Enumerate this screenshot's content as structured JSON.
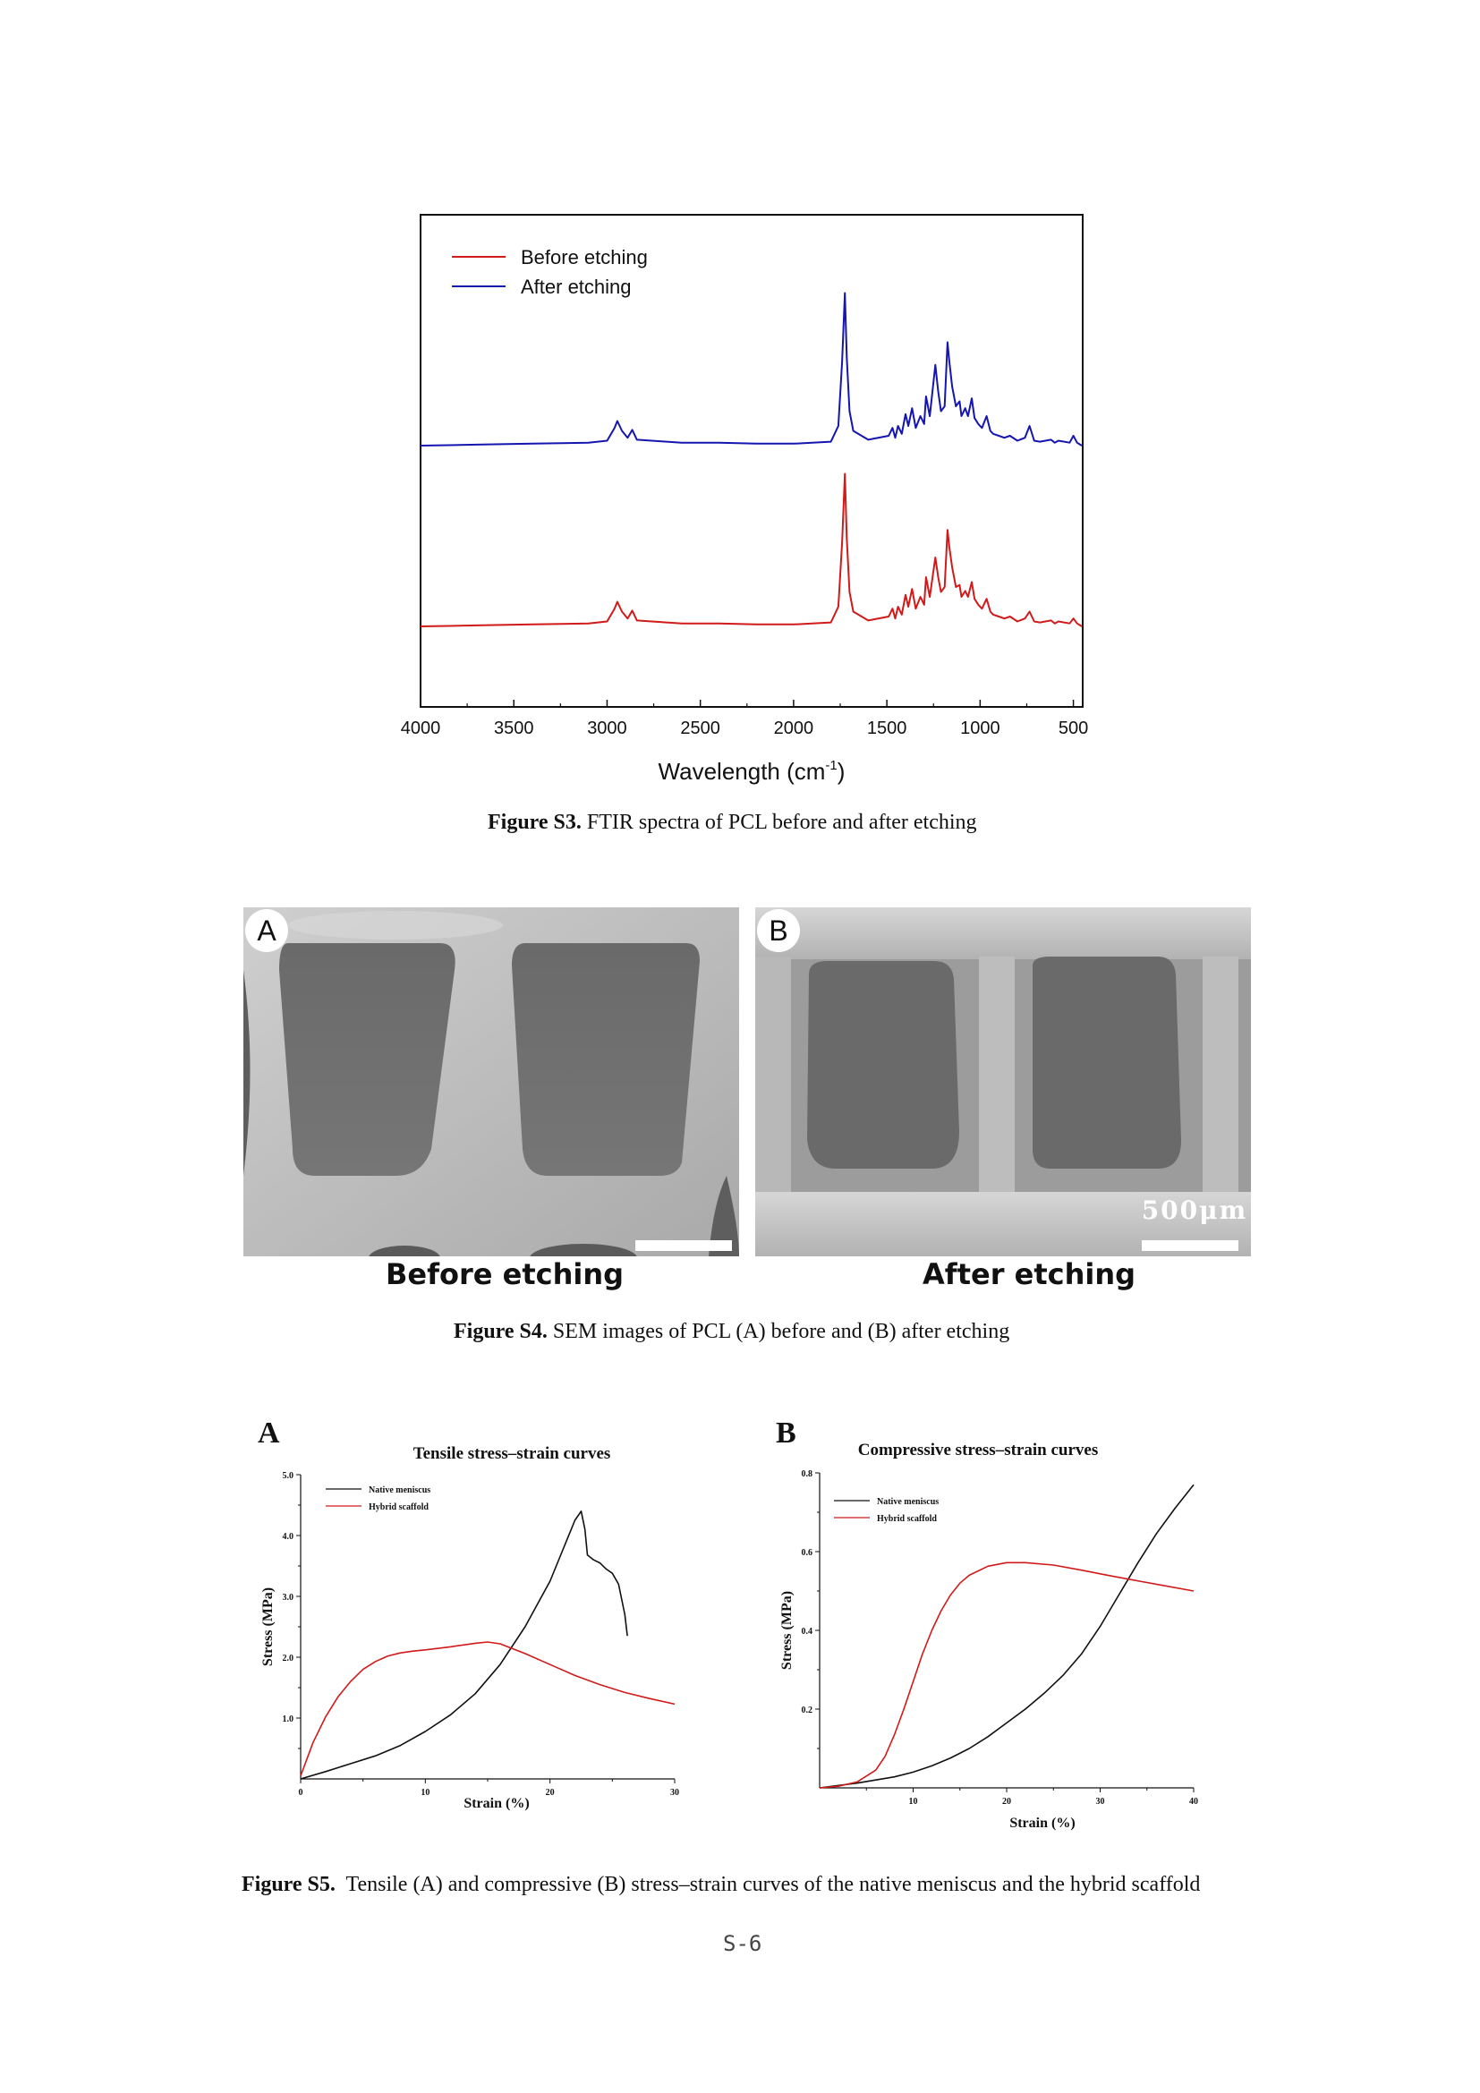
{
  "figure_s3": {
    "caption_label": "Figure S3.",
    "caption_text": " FTIR spectra of PCL before and after etching"
  },
  "figure_s4": {
    "panel_a_letter": "A",
    "panel_b_letter": "B",
    "panel_a_sub": "Before etching",
    "panel_b_sub": "After etching",
    "scale_text": "500μm",
    "caption_label": "Figure S4.",
    "caption_text": " SEM images of PCL (A) before and (B) after etching"
  },
  "figure_s5": {
    "panel_a_letter": "A",
    "panel_b_letter": "B",
    "caption_label": "Figure S5.",
    "caption_text": "  Tensile (A) and compressive (B) stress–strain curves of the native meniscus and the hybrid scaffold"
  },
  "page_number": "S-6",
  "colors": {
    "red": "#d11a1a",
    "blue": "#1515b0",
    "black": "#111111"
  },
  "chart_data": [
    {
      "id": "ftir",
      "type": "line",
      "title": "",
      "xlabel": "Wavelength (cm",
      "xlabel_sup": "-1",
      "xlabel_close": ")",
      "ylabel": "",
      "xlim": [
        4000,
        450
      ],
      "x_reversed": true,
      "xticks": [
        4000,
        3500,
        3000,
        2500,
        2000,
        1500,
        1000,
        500
      ],
      "legend_position": "top-left",
      "series": [
        {
          "name": "Before etching",
          "color": "#d11a1a",
          "baseline": 0,
          "x": [
            4000,
            3700,
            3400,
            3100,
            3000,
            2960,
            2945,
            2920,
            2890,
            2865,
            2840,
            2600,
            2400,
            2200,
            2000,
            1800,
            1760,
            1740,
            1725,
            1715,
            1700,
            1680,
            1600,
            1490,
            1470,
            1455,
            1440,
            1420,
            1400,
            1385,
            1365,
            1345,
            1320,
            1300,
            1290,
            1270,
            1240,
            1225,
            1210,
            1190,
            1175,
            1165,
            1150,
            1130,
            1110,
            1100,
            1080,
            1065,
            1045,
            1030,
            1010,
            990,
            965,
            945,
            930,
            900,
            870,
            840,
            800,
            760,
            735,
            710,
            680,
            620,
            600,
            580,
            520,
            500,
            480,
            455
          ],
          "y": [
            0.0,
            0.01,
            0.02,
            0.03,
            0.05,
            0.18,
            0.25,
            0.15,
            0.08,
            0.16,
            0.06,
            0.03,
            0.03,
            0.02,
            0.02,
            0.04,
            0.2,
            0.85,
            1.55,
            0.9,
            0.35,
            0.15,
            0.06,
            0.1,
            0.18,
            0.08,
            0.2,
            0.12,
            0.32,
            0.2,
            0.38,
            0.18,
            0.3,
            0.22,
            0.5,
            0.3,
            0.7,
            0.5,
            0.35,
            0.4,
            0.98,
            0.8,
            0.6,
            0.4,
            0.42,
            0.3,
            0.36,
            0.3,
            0.45,
            0.28,
            0.22,
            0.18,
            0.28,
            0.15,
            0.12,
            0.1,
            0.08,
            0.1,
            0.05,
            0.08,
            0.15,
            0.05,
            0.04,
            0.06,
            0.03,
            0.05,
            0.03,
            0.08,
            0.03,
            0.0
          ]
        },
        {
          "name": "After etching",
          "color": "#1515b0",
          "baseline": 1,
          "x": [
            4000,
            3700,
            3400,
            3100,
            3000,
            2960,
            2945,
            2920,
            2890,
            2865,
            2840,
            2600,
            2400,
            2200,
            2000,
            1800,
            1760,
            1740,
            1725,
            1715,
            1700,
            1680,
            1600,
            1490,
            1470,
            1455,
            1440,
            1420,
            1400,
            1385,
            1365,
            1345,
            1320,
            1300,
            1290,
            1270,
            1240,
            1225,
            1210,
            1190,
            1175,
            1165,
            1150,
            1130,
            1110,
            1100,
            1080,
            1065,
            1045,
            1030,
            1010,
            990,
            965,
            945,
            930,
            900,
            870,
            840,
            800,
            760,
            735,
            710,
            680,
            620,
            600,
            580,
            520,
            500,
            480,
            455
          ],
          "y": [
            0.0,
            0.01,
            0.02,
            0.03,
            0.05,
            0.18,
            0.25,
            0.15,
            0.08,
            0.16,
            0.06,
            0.03,
            0.03,
            0.02,
            0.02,
            0.04,
            0.2,
            0.85,
            1.55,
            0.9,
            0.35,
            0.15,
            0.06,
            0.1,
            0.18,
            0.08,
            0.2,
            0.12,
            0.32,
            0.2,
            0.38,
            0.18,
            0.3,
            0.22,
            0.5,
            0.3,
            0.82,
            0.55,
            0.35,
            0.4,
            1.05,
            0.85,
            0.6,
            0.4,
            0.45,
            0.3,
            0.38,
            0.3,
            0.48,
            0.28,
            0.22,
            0.18,
            0.3,
            0.15,
            0.12,
            0.1,
            0.08,
            0.1,
            0.05,
            0.08,
            0.2,
            0.05,
            0.04,
            0.06,
            0.03,
            0.05,
            0.03,
            0.1,
            0.03,
            0.0
          ]
        }
      ]
    },
    {
      "id": "tensile",
      "type": "line",
      "title": "Tensile stress–strain curves",
      "xlabel": "Strain (%)",
      "ylabel": "Stress (MPa)",
      "xlim": [
        0,
        30
      ],
      "ylim": [
        0,
        5
      ],
      "xticks": [
        "0",
        "10",
        "20",
        "30"
      ],
      "yticks": [
        "1.0",
        "2.0",
        "3.0",
        "4.0",
        "5.0"
      ],
      "legend_position": "top-left",
      "series": [
        {
          "name": "Native meniscus",
          "color": "#111111",
          "x": [
            0,
            2,
            4,
            6,
            8,
            10,
            12,
            14,
            16,
            18,
            20,
            21,
            22,
            22.5,
            22.8,
            23,
            23.5,
            24,
            24.5,
            25,
            25.5,
            26,
            26.2
          ],
          "y": [
            0,
            0.12,
            0.25,
            0.38,
            0.55,
            0.78,
            1.05,
            1.4,
            1.88,
            2.5,
            3.25,
            3.75,
            4.25,
            4.4,
            4.1,
            3.68,
            3.6,
            3.55,
            3.45,
            3.38,
            3.2,
            2.7,
            2.35
          ]
        },
        {
          "name": "Hybrid scaffold",
          "color": "#d11a1a",
          "x": [
            0,
            1,
            2,
            3,
            4,
            5,
            6,
            7,
            8,
            9,
            10,
            12,
            14,
            15,
            16,
            18,
            20,
            22,
            24,
            26,
            28,
            30
          ],
          "y": [
            0.05,
            0.6,
            1.02,
            1.35,
            1.6,
            1.8,
            1.93,
            2.02,
            2.07,
            2.1,
            2.12,
            2.17,
            2.23,
            2.25,
            2.22,
            2.06,
            1.88,
            1.7,
            1.55,
            1.42,
            1.32,
            1.23
          ]
        }
      ]
    },
    {
      "id": "compressive",
      "type": "line",
      "title": "Compressive stress–strain curves",
      "xlabel": "Strain (%)",
      "ylabel": "Stress (MPa)",
      "xlim": [
        0,
        40
      ],
      "ylim": [
        0,
        0.8
      ],
      "xticks": [
        "10",
        "20",
        "30",
        "40"
      ],
      "yticks": [
        "0.2",
        "0.4",
        "0.6",
        "0.8"
      ],
      "legend_position": "top-left",
      "series": [
        {
          "name": "Native meniscus",
          "color": "#111111",
          "x": [
            0,
            4,
            8,
            10,
            12,
            14,
            16,
            18,
            20,
            22,
            24,
            26,
            28,
            30,
            32,
            34,
            36,
            38,
            40
          ],
          "y": [
            0,
            0.012,
            0.028,
            0.04,
            0.056,
            0.076,
            0.1,
            0.13,
            0.165,
            0.2,
            0.24,
            0.285,
            0.34,
            0.41,
            0.49,
            0.57,
            0.645,
            0.71,
            0.77
          ]
        },
        {
          "name": "Hybrid scaffold",
          "color": "#d11a1a",
          "x": [
            0,
            2,
            4,
            6,
            7,
            8,
            9,
            10,
            11,
            12,
            13,
            14,
            15,
            16,
            18,
            20,
            22,
            25,
            28,
            31,
            34,
            37,
            40
          ],
          "y": [
            0,
            0.004,
            0.015,
            0.045,
            0.08,
            0.135,
            0.2,
            0.27,
            0.34,
            0.4,
            0.45,
            0.49,
            0.52,
            0.54,
            0.563,
            0.572,
            0.572,
            0.566,
            0.553,
            0.539,
            0.526,
            0.513,
            0.5
          ]
        }
      ]
    }
  ]
}
